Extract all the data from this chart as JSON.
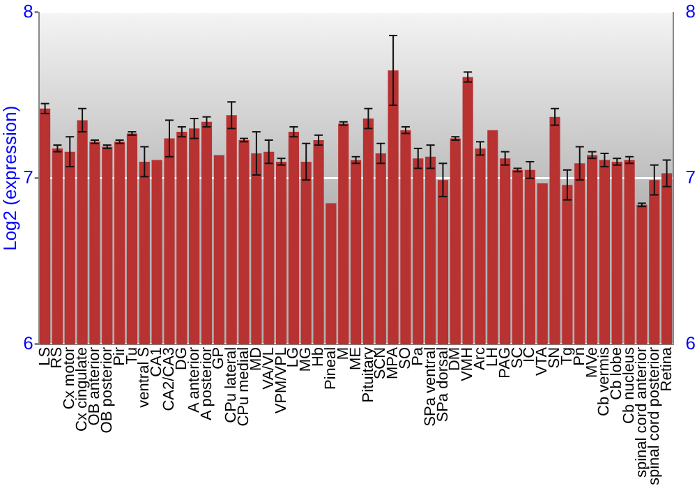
{
  "chart_data": {
    "type": "bar",
    "ylabel": "Log2 (expression)",
    "categories": [
      "LS",
      "RS",
      "Cx motor",
      "Cx cingulate",
      "OB anterior",
      "OB posterior",
      "Pir",
      "Tu",
      "ventral S",
      "CA1",
      "CA2/CA3",
      "DG",
      "A anterior",
      "A posterior",
      "GP",
      "CPu lateral",
      "CPu medial",
      "MD",
      "VA/VL",
      "VPM/VPL",
      "LG",
      "MG",
      "Hb",
      "Pineal",
      "M",
      "ME",
      "Pituitary",
      "SCN",
      "MPA",
      "SO",
      "Pa",
      "SPa ventral",
      "SPa dorsal",
      "DM",
      "VMH",
      "Arc",
      "LH",
      "PAG",
      "SC",
      "IC",
      "VTA",
      "SN",
      "Tg",
      "Pn",
      "MVe",
      "Cb vermis",
      "Cb lobe",
      "Cb nucleus",
      "spinal cord anterior",
      "spinal cord posterior",
      "Retina"
    ],
    "values": [
      7.42,
      7.18,
      7.16,
      7.35,
      7.22,
      7.19,
      7.22,
      7.27,
      7.1,
      7.11,
      7.24,
      7.28,
      7.3,
      7.34,
      7.14,
      7.38,
      7.23,
      7.15,
      7.16,
      7.1,
      7.28,
      7.1,
      7.23,
      6.85,
      7.33,
      7.11,
      7.36,
      7.15,
      7.65,
      7.29,
      7.12,
      7.13,
      6.99,
      7.24,
      7.61,
      7.18,
      7.29,
      7.12,
      7.05,
      7.05,
      6.97,
      7.37,
      6.96,
      7.09,
      7.14,
      7.11,
      7.1,
      7.11,
      6.84,
      6.99,
      7.03
    ],
    "errors": [
      0.03,
      0.02,
      0.09,
      0.07,
      0.01,
      0.01,
      0.01,
      0.01,
      0.09,
      null,
      0.11,
      0.03,
      0.06,
      0.03,
      null,
      0.08,
      0.01,
      0.13,
      0.07,
      0.02,
      0.03,
      0.11,
      0.03,
      null,
      0.01,
      0.02,
      0.06,
      0.06,
      0.21,
      0.02,
      0.06,
      0.07,
      0.1,
      0.01,
      0.03,
      0.04,
      null,
      0.04,
      0.01,
      0.05,
      null,
      0.05,
      0.09,
      0.1,
      0.02,
      0.04,
      0.02,
      0.02,
      0.01,
      0.09,
      0.08
    ],
    "color": "#b83232",
    "ylim": [
      6,
      8
    ],
    "yticks": [
      6,
      7,
      8
    ],
    "y2lim": [
      6,
      8
    ],
    "y2ticks": [
      6,
      7,
      8
    ],
    "grid": "y"
  }
}
